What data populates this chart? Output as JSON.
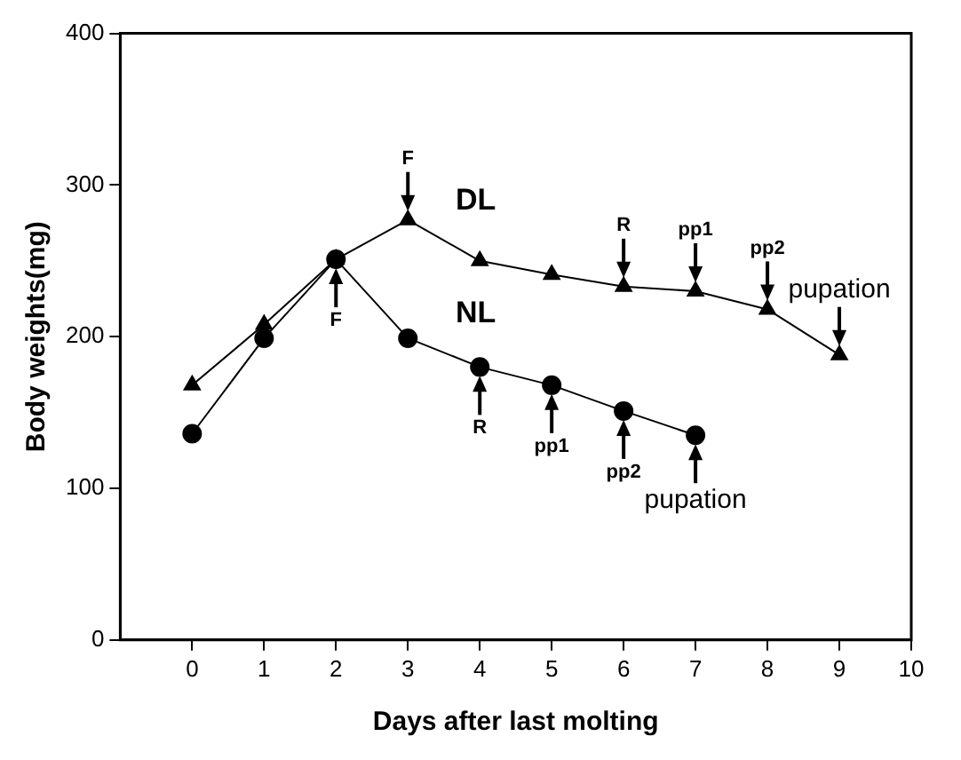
{
  "chart_data": {
    "type": "line",
    "xlabel": "Days after last molting",
    "ylabel": "Body weights(mg)",
    "xlim": [
      -1,
      10
    ],
    "xticks": [
      0,
      1,
      2,
      3,
      4,
      5,
      6,
      7,
      8,
      9,
      10
    ],
    "ylim": [
      0,
      400
    ],
    "yticks": [
      0,
      100,
      200,
      300,
      400
    ],
    "grid": false,
    "legend": "top",
    "series": [
      {
        "name": "DL",
        "color": "#000000",
        "marker": "triangle",
        "x": [
          0,
          1,
          2,
          3,
          4,
          5,
          6,
          7,
          8,
          9
        ],
        "values": [
          168,
          208,
          251,
          277,
          250,
          241,
          233,
          230,
          218,
          188
        ]
      },
      {
        "name": "NL",
        "color": "#000000",
        "marker": "circle",
        "x": [
          0,
          1,
          2,
          3,
          4,
          5,
          6,
          7
        ],
        "values": [
          136,
          199,
          251,
          199,
          180,
          168,
          151,
          135
        ]
      }
    ],
    "annotations": [
      {
        "text": "F",
        "x": 3,
        "y": 277
      },
      {
        "text": "R",
        "x": 6,
        "y": 233
      },
      {
        "text": "pp1",
        "x": 7,
        "y": 230
      },
      {
        "text": "pp2",
        "x": 8,
        "y": 218
      },
      {
        "text": "pupation",
        "x": 9,
        "y": 188
      },
      {
        "text": "F",
        "x": 2,
        "y": 251
      },
      {
        "text": "R",
        "x": 4,
        "y": 180
      },
      {
        "text": "pp1",
        "x": 5,
        "y": 168
      },
      {
        "text": "pp2",
        "x": 6,
        "y": 151
      },
      {
        "text": "pupation",
        "x": 7,
        "y": 135
      }
    ]
  }
}
